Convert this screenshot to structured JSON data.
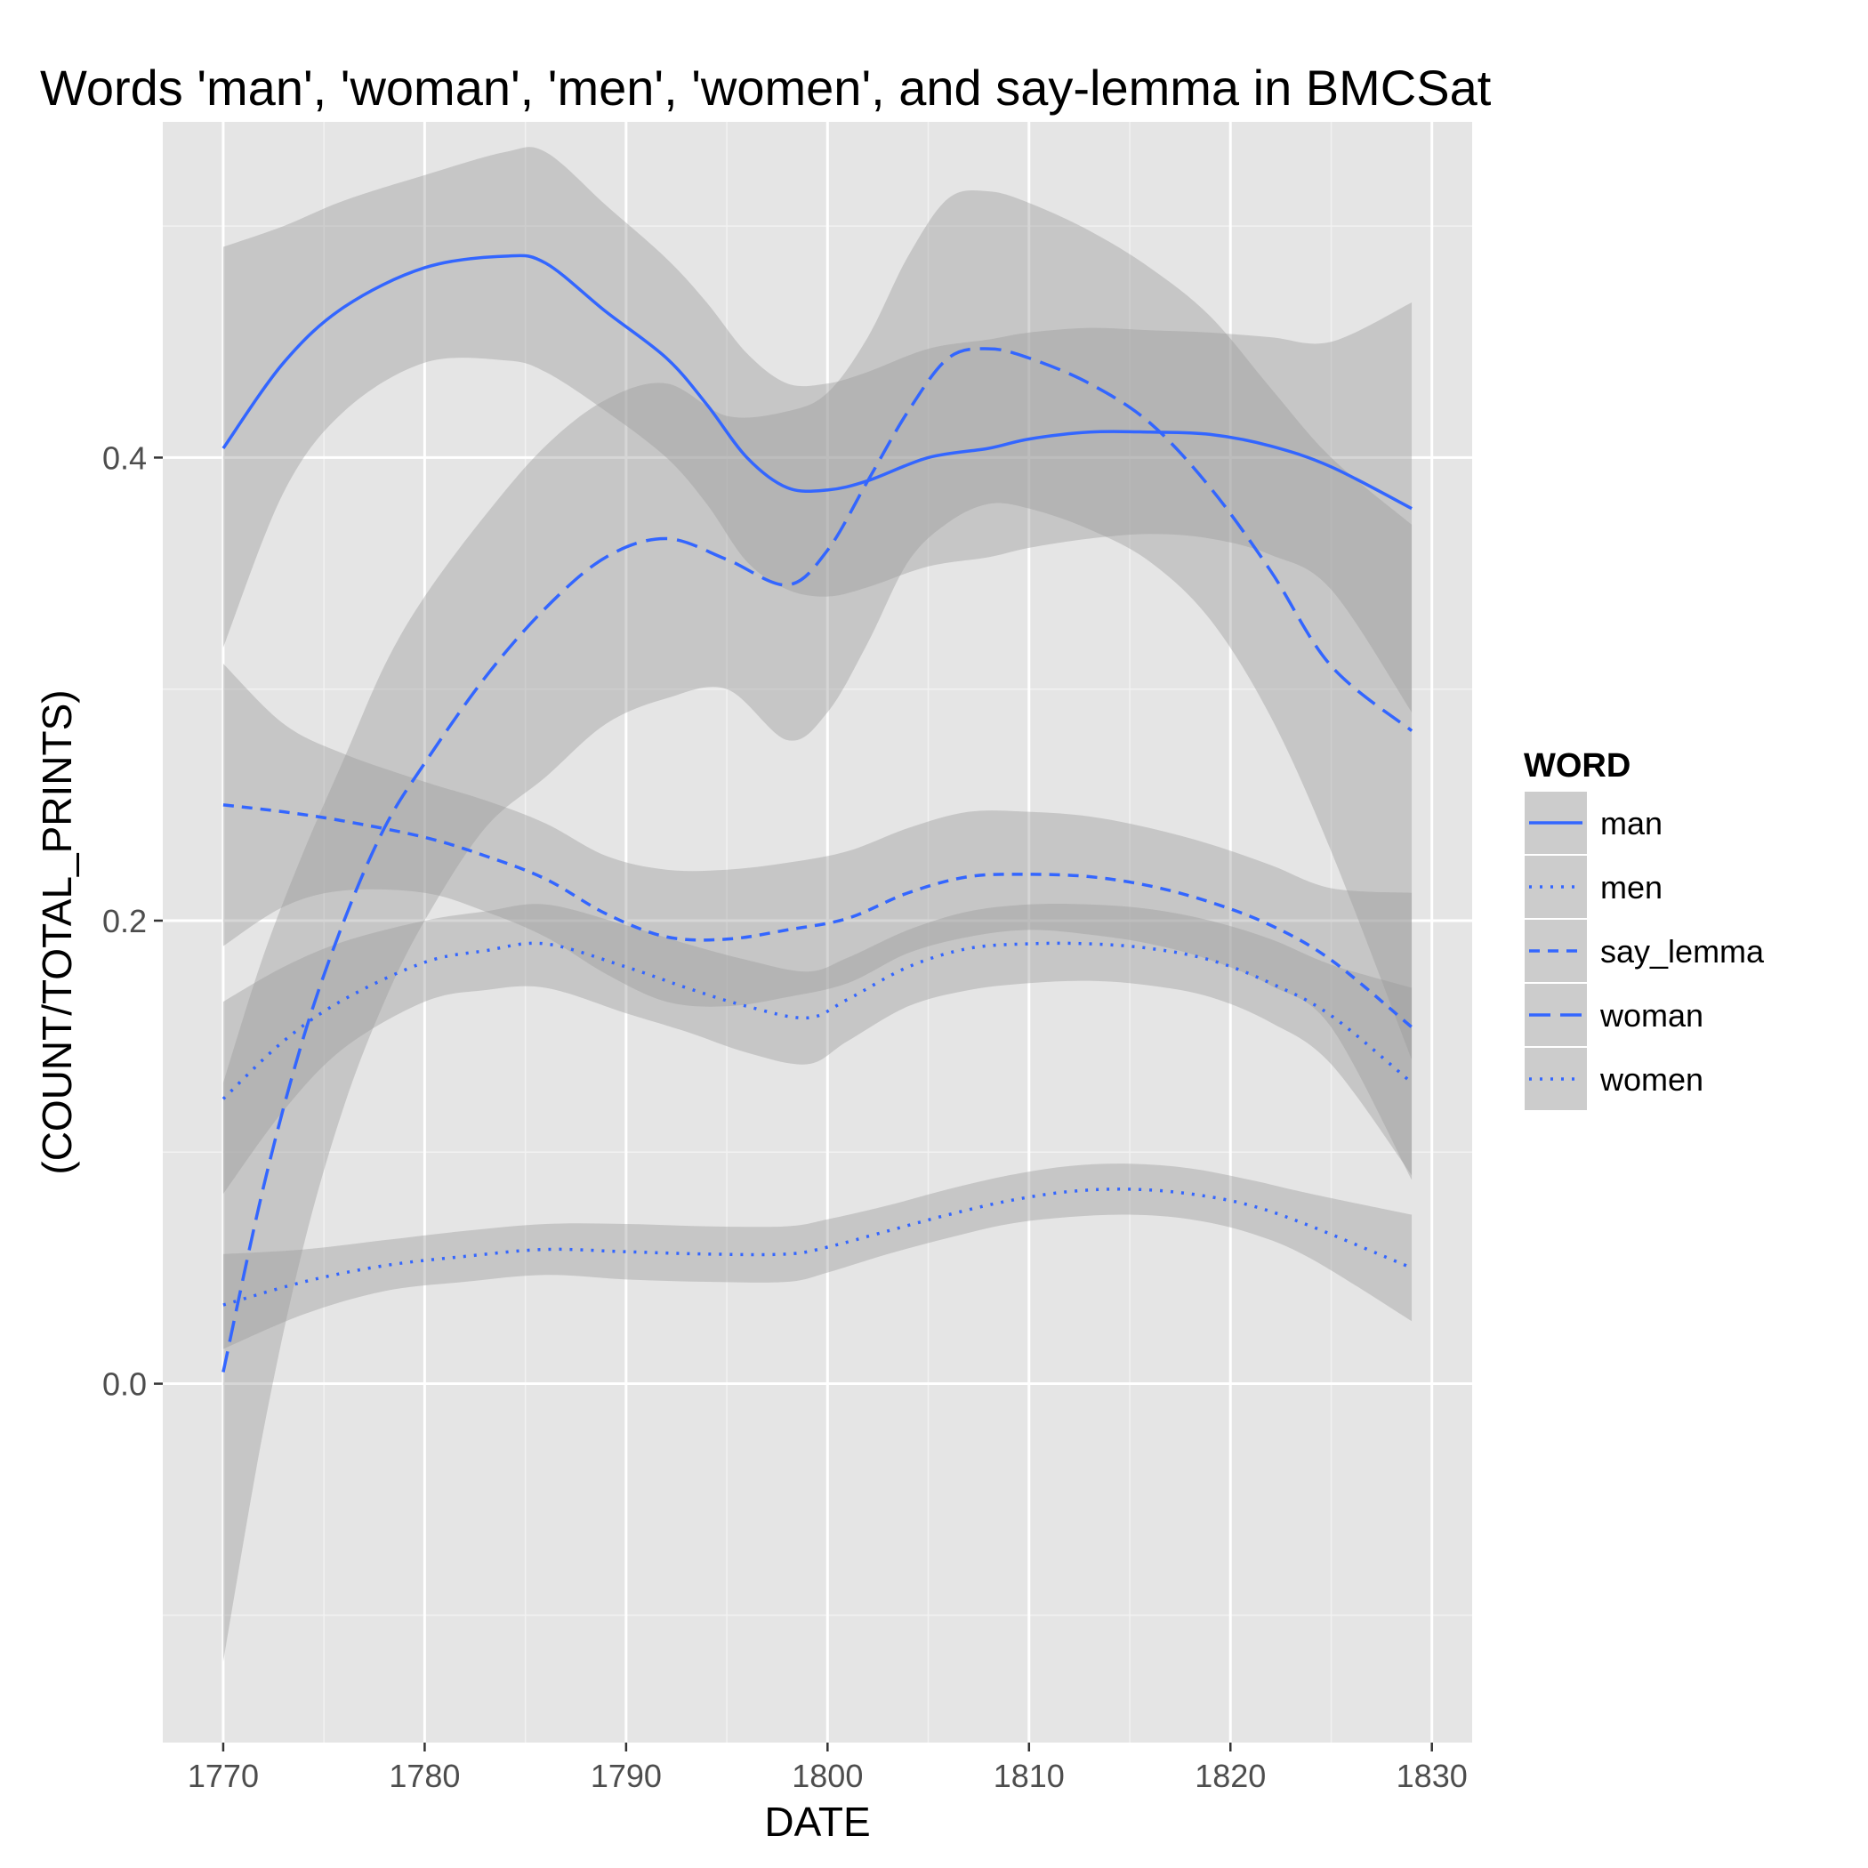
{
  "chart_data": {
    "type": "line",
    "title": "Words 'man', 'woman', 'men', 'women', and say-lemma in BMCSat",
    "xlabel": "DATE",
    "ylabel": "(COUNT/TOTAL_PRINTS)",
    "xlim": [
      1767,
      1832
    ],
    "ylim": [
      -0.155,
      0.545
    ],
    "xticks": [
      1770,
      1780,
      1790,
      1800,
      1810,
      1820,
      1830
    ],
    "xtick_labels": [
      "1770",
      "1780",
      "1790",
      "1800",
      "1810",
      "1820",
      "1830"
    ],
    "yticks": [
      0.0,
      0.2,
      0.4
    ],
    "ytick_labels": [
      "0.0",
      "0.2",
      "0.4"
    ],
    "grid": true,
    "legend_title": "WORD",
    "legend_position": "right",
    "series": [
      {
        "name": "man",
        "linestyle": "solid",
        "x": [
          1770,
          1773,
          1776,
          1780,
          1784,
          1786,
          1789,
          1792,
          1794,
          1796,
          1798,
          1800,
          1802,
          1805,
          1808,
          1810,
          1813,
          1816,
          1819,
          1822,
          1825,
          1829
        ],
        "y": [
          0.404,
          0.441,
          0.465,
          0.482,
          0.487,
          0.484,
          0.463,
          0.443,
          0.423,
          0.4,
          0.387,
          0.386,
          0.39,
          0.4,
          0.404,
          0.408,
          0.411,
          0.411,
          0.41,
          0.405,
          0.396,
          0.378
        ],
        "lower": [
          0.318,
          0.385,
          0.42,
          0.441,
          0.442,
          0.437,
          0.42,
          0.4,
          0.38,
          0.355,
          0.343,
          0.34,
          0.344,
          0.353,
          0.357,
          0.361,
          0.365,
          0.367,
          0.365,
          0.358,
          0.343,
          0.29
        ],
        "upper": [
          0.491,
          0.5,
          0.511,
          0.522,
          0.532,
          0.532,
          0.509,
          0.486,
          0.467,
          0.445,
          0.432,
          0.432,
          0.437,
          0.447,
          0.451,
          0.454,
          0.456,
          0.455,
          0.454,
          0.452,
          0.45,
          0.467
        ]
      },
      {
        "name": "men",
        "linestyle": "dotted",
        "x": [
          1770,
          1773,
          1776,
          1780,
          1783,
          1786,
          1790,
          1793,
          1796,
          1799,
          1801,
          1804,
          1807,
          1810,
          1813,
          1816,
          1819,
          1822,
          1825,
          1829
        ],
        "y": [
          0.123,
          0.148,
          0.166,
          0.182,
          0.187,
          0.19,
          0.18,
          0.171,
          0.163,
          0.158,
          0.166,
          0.18,
          0.188,
          0.19,
          0.19,
          0.188,
          0.183,
          0.173,
          0.159,
          0.13
        ],
        "lower": [
          0.082,
          0.118,
          0.145,
          0.165,
          0.17,
          0.171,
          0.16,
          0.152,
          0.143,
          0.138,
          0.148,
          0.163,
          0.17,
          0.173,
          0.174,
          0.172,
          0.167,
          0.156,
          0.138,
          0.09
        ],
        "upper": [
          0.165,
          0.18,
          0.191,
          0.2,
          0.204,
          0.207,
          0.198,
          0.19,
          0.183,
          0.178,
          0.184,
          0.196,
          0.204,
          0.207,
          0.207,
          0.205,
          0.2,
          0.192,
          0.181,
          0.171
        ]
      },
      {
        "name": "say_lemma",
        "linestyle": "dashed",
        "x": [
          1770,
          1773,
          1776,
          1780,
          1783,
          1786,
          1789,
          1792,
          1795,
          1798,
          1801,
          1804,
          1807,
          1810,
          1813,
          1816,
          1819,
          1822,
          1825,
          1829
        ],
        "y": [
          0.25,
          0.247,
          0.243,
          0.236,
          0.228,
          0.218,
          0.203,
          0.193,
          0.192,
          0.196,
          0.201,
          0.212,
          0.219,
          0.22,
          0.219,
          0.215,
          0.208,
          0.198,
          0.183,
          0.154
        ],
        "lower": [
          0.189,
          0.206,
          0.213,
          0.212,
          0.204,
          0.193,
          0.177,
          0.165,
          0.163,
          0.167,
          0.173,
          0.186,
          0.193,
          0.196,
          0.194,
          0.19,
          0.183,
          0.172,
          0.154,
          0.088
        ],
        "upper": [
          0.311,
          0.285,
          0.272,
          0.26,
          0.252,
          0.242,
          0.228,
          0.222,
          0.222,
          0.225,
          0.23,
          0.24,
          0.247,
          0.247,
          0.245,
          0.24,
          0.233,
          0.224,
          0.214,
          0.212
        ]
      },
      {
        "name": "woman",
        "linestyle": "longdash",
        "x": [
          1770,
          1772,
          1774,
          1776,
          1778,
          1780,
          1783,
          1786,
          1789,
          1792,
          1795,
          1798,
          1800,
          1802,
          1804,
          1806,
          1808,
          1810,
          1813,
          1816,
          1819,
          1822,
          1825,
          1829
        ],
        "y": [
          0.005,
          0.085,
          0.15,
          0.2,
          0.24,
          0.268,
          0.305,
          0.335,
          0.357,
          0.365,
          0.356,
          0.345,
          0.36,
          0.39,
          0.42,
          0.443,
          0.447,
          0.443,
          0.432,
          0.415,
          0.387,
          0.351,
          0.31,
          0.282
        ],
        "lower": [
          -0.12,
          -0.02,
          0.06,
          0.12,
          0.165,
          0.2,
          0.24,
          0.262,
          0.285,
          0.296,
          0.3,
          0.278,
          0.29,
          0.32,
          0.355,
          0.372,
          0.38,
          0.378,
          0.369,
          0.355,
          0.33,
          0.288,
          0.23,
          0.14
        ],
        "upper": [
          0.13,
          0.185,
          0.23,
          0.27,
          0.31,
          0.34,
          0.375,
          0.405,
          0.425,
          0.432,
          0.418,
          0.42,
          0.428,
          0.452,
          0.487,
          0.512,
          0.515,
          0.51,
          0.498,
          0.482,
          0.461,
          0.43,
          0.4,
          0.371
        ]
      },
      {
        "name": "women",
        "linestyle": "dotted",
        "x": [
          1770,
          1774,
          1778,
          1782,
          1786,
          1790,
          1794,
          1798,
          1800,
          1803,
          1806,
          1809,
          1812,
          1815,
          1818,
          1821,
          1824,
          1829
        ],
        "y": [
          0.034,
          0.044,
          0.051,
          0.055,
          0.058,
          0.057,
          0.056,
          0.056,
          0.059,
          0.066,
          0.073,
          0.079,
          0.083,
          0.084,
          0.082,
          0.077,
          0.068,
          0.05
        ],
        "lower": [
          0.015,
          0.03,
          0.04,
          0.044,
          0.047,
          0.045,
          0.044,
          0.044,
          0.048,
          0.056,
          0.063,
          0.069,
          0.072,
          0.073,
          0.071,
          0.065,
          0.054,
          0.027
        ],
        "upper": [
          0.056,
          0.058,
          0.062,
          0.066,
          0.069,
          0.069,
          0.068,
          0.068,
          0.071,
          0.077,
          0.084,
          0.09,
          0.094,
          0.095,
          0.093,
          0.088,
          0.082,
          0.073
        ]
      }
    ]
  },
  "colors": {
    "panel_background": "#e5e5e5",
    "grid_major": "#ffffff",
    "grid_minor": "#f2f2f2",
    "ribbon": "#999999",
    "line": "#3366ff",
    "legend_key_background": "#cccccc"
  }
}
